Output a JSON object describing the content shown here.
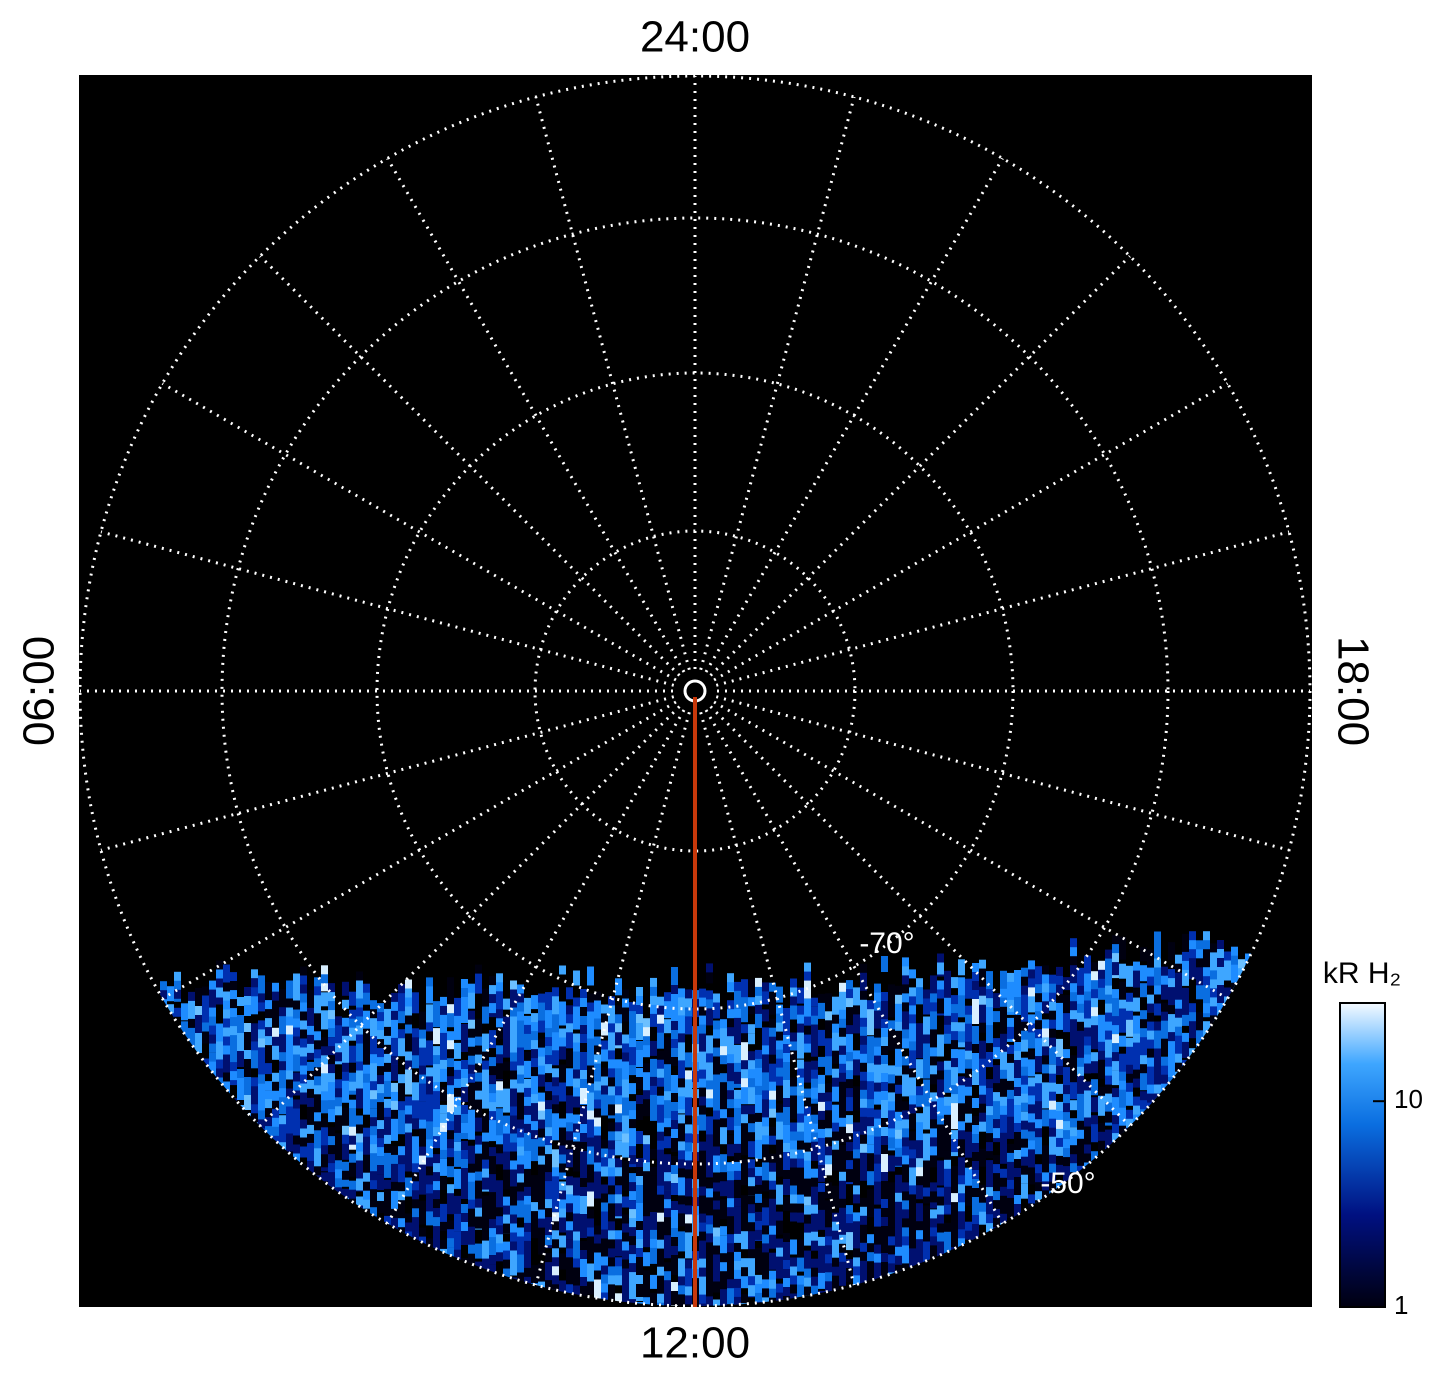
{
  "labels": {
    "top": "24:00",
    "bottom": "12:00",
    "left": "06:00",
    "right": "18:00"
  },
  "latitude_labels": [
    "-70°",
    "-50°"
  ],
  "colorbar": {
    "title": "kR H₂",
    "scale": "log",
    "lim": [
      1,
      30
    ],
    "ticks": [
      1,
      10
    ]
  }
}
